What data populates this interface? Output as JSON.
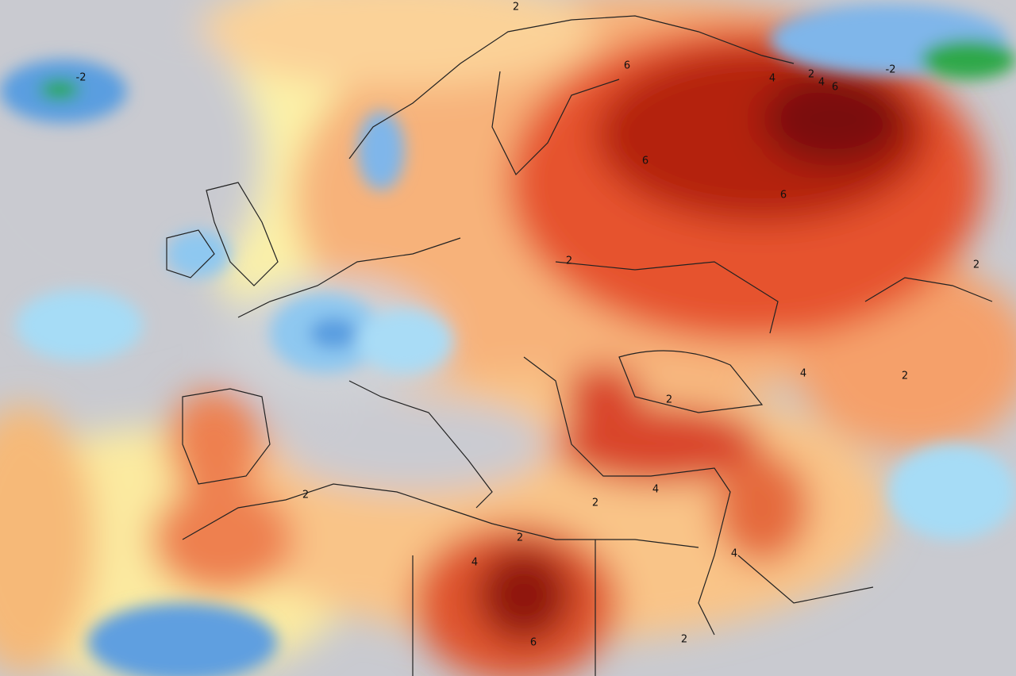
{
  "contour_labels": [
    2,
    -2,
    6,
    4,
    2,
    4,
    6,
    -2,
    6,
    6,
    2,
    2,
    4,
    2,
    2,
    2,
    4,
    2,
    2,
    4,
    4,
    6,
    2
  ]
}
